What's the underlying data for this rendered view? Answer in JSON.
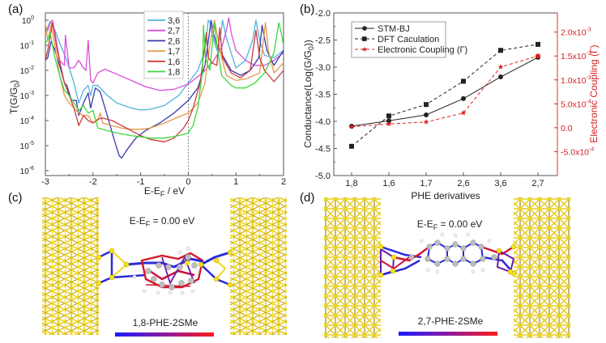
{
  "panels": {
    "a": "(a)",
    "b": "(b)",
    "c": "(c)",
    "d": "(d)"
  },
  "chart_data": [
    {
      "id": "a",
      "type": "line",
      "title": "",
      "xlabel": "E-E",
      "xlabel_sub": "F",
      "xlabel_suffix": " / eV",
      "ylabel": "T(G/G",
      "ylabel_sub": "0",
      "ylabel_suffix": ")",
      "yscale": "log",
      "xlim": [
        -3,
        2
      ],
      "ylim_exp": [
        -6.3,
        0.2
      ],
      "x_ticks": [
        -3,
        -2,
        -1,
        0,
        1,
        2
      ],
      "x_tick_labels": [
        "-3",
        "-2",
        "-1",
        "0",
        "1",
        "2"
      ],
      "y_ticks_exp": [
        0,
        -1,
        -2,
        -3,
        -4,
        -5,
        -6
      ],
      "y_tick_labels": [
        "10",
        "10",
        "10",
        "10",
        "10",
        "10",
        "10"
      ],
      "y_tick_sups": [
        "0",
        "-1",
        "-2",
        "-3",
        "-4",
        "-5",
        "-6"
      ],
      "fermi_line_x": 0,
      "legend_position": "top-center",
      "series": [
        {
          "name": "3,6",
          "color": "#4fb3dc",
          "x": [
            -3.0,
            -2.9,
            -2.8,
            -2.7,
            -2.55,
            -2.4,
            -2.3,
            -2.2,
            -2.1,
            -2.05,
            -2.0,
            -1.9,
            -1.7,
            -1.5,
            -1.2,
            -1.0,
            -0.8,
            -0.5,
            -0.2,
            0.0,
            0.2,
            0.35,
            0.42,
            0.46,
            0.5,
            0.6,
            0.68,
            0.72,
            0.8,
            1.0,
            1.2,
            1.35,
            1.42,
            1.5,
            1.6,
            1.8,
            2.0
          ],
          "logy": [
            -0.5,
            -0.05,
            -0.4,
            -0.9,
            -1.6,
            -2.5,
            -3.3,
            -2.8,
            -2.6,
            -3.0,
            -2.6,
            -2.6,
            -3.0,
            -3.3,
            -3.5,
            -3.58,
            -3.55,
            -3.4,
            -3.0,
            -2.5,
            -2.0,
            -1.2,
            0.0,
            -0.1,
            -0.6,
            -1.2,
            -0.6,
            0.0,
            -0.7,
            -1.9,
            -1.6,
            -0.8,
            0.0,
            -0.8,
            -1.4,
            -1.5,
            -1.2
          ]
        },
        {
          "name": "2,7",
          "color": "#d94fd9",
          "x": [
            -3.0,
            -2.95,
            -2.9,
            -2.85,
            -2.8,
            -2.7,
            -2.6,
            -2.58,
            -2.5,
            -2.4,
            -2.3,
            -2.2,
            -2.15,
            -2.1,
            -2.05,
            -2.0,
            -1.9,
            -1.75,
            -1.5,
            -1.2,
            -0.9,
            -0.6,
            -0.3,
            0.0,
            0.3,
            0.5,
            0.7,
            0.8,
            0.85,
            0.9,
            1.0,
            1.2,
            1.4,
            1.6,
            1.8,
            2.0
          ],
          "logy": [
            -0.5,
            -0.4,
            -0.1,
            0.0,
            -0.5,
            -1.6,
            -1.8,
            -0.6,
            -1.9,
            -1.9,
            -1.6,
            -1.9,
            -2.0,
            -0.8,
            -2.4,
            -2.5,
            -2.1,
            -1.95,
            -2.15,
            -2.4,
            -2.65,
            -2.8,
            -2.75,
            -2.55,
            -2.1,
            -1.7,
            -1.1,
            -0.4,
            0.1,
            -0.5,
            -1.2,
            -1.6,
            -1.8,
            -1.8,
            -1.6,
            -1.3
          ]
        },
        {
          "name": "2,6",
          "color": "#3a3ab0",
          "x": [
            -3.0,
            -2.95,
            -2.88,
            -2.8,
            -2.7,
            -2.6,
            -2.55,
            -2.45,
            -2.35,
            -2.3,
            -2.2,
            -2.1,
            -2.05,
            -1.95,
            -1.85,
            -1.7,
            -1.55,
            -1.45,
            -1.4,
            -1.3,
            -1.1,
            -0.9,
            -0.6,
            -0.3,
            0.0,
            0.2,
            0.35,
            0.48,
            0.52,
            0.6,
            0.75,
            0.9,
            1.1,
            1.3,
            1.48,
            1.55,
            1.65,
            1.8,
            2.0
          ],
          "logy": [
            -1.6,
            -1.5,
            -0.85,
            -1.2,
            -1.8,
            -2.5,
            -2.6,
            -3.2,
            -3.2,
            -3.8,
            -3.3,
            -2.9,
            -3.5,
            -2.7,
            -2.85,
            -3.8,
            -4.8,
            -5.4,
            -5.5,
            -5.2,
            -4.7,
            -4.4,
            -4.1,
            -3.7,
            -3.2,
            -2.7,
            -1.8,
            0.0,
            -0.5,
            -1.0,
            -1.5,
            -2.0,
            -2.2,
            -2.0,
            -1.5,
            -0.2,
            -1.2,
            -1.8,
            -1.2
          ]
        },
        {
          "name": "1,7",
          "color": "#e39a4a",
          "x": [
            -3.0,
            -2.95,
            -2.88,
            -2.8,
            -2.7,
            -2.6,
            -2.5,
            -2.4,
            -2.3,
            -2.2,
            -2.1,
            -2.0,
            -1.9,
            -1.85,
            -1.8,
            -1.6,
            -1.4,
            -1.2,
            -1.0,
            -0.8,
            -0.5,
            -0.2,
            0.0,
            0.2,
            0.35,
            0.45,
            0.55,
            0.6,
            0.7,
            0.8,
            1.0,
            1.2,
            1.5,
            1.62,
            1.68,
            1.8,
            2.0
          ],
          "logy": [
            -0.1,
            -0.8,
            -0.2,
            -1.0,
            -2.2,
            -3.0,
            -3.3,
            -3.5,
            -3.7,
            -3.8,
            -3.8,
            -4.1,
            -4.0,
            -3.7,
            -4.1,
            -4.2,
            -4.3,
            -4.35,
            -4.35,
            -4.3,
            -4.1,
            -3.85,
            -3.7,
            -3.3,
            -2.5,
            -1.0,
            0.0,
            -0.5,
            -1.5,
            -2.2,
            -2.4,
            -2.35,
            -2.1,
            -0.1,
            -1.2,
            -2.1,
            -1.7
          ]
        },
        {
          "name": "1,6",
          "color": "#cc3b3b",
          "x": [
            -3.0,
            -2.95,
            -2.85,
            -2.75,
            -2.6,
            -2.5,
            -2.4,
            -2.3,
            -2.2,
            -2.1,
            -2.0,
            -1.9,
            -1.8,
            -1.6,
            -1.4,
            -1.2,
            -1.0,
            -0.8,
            -0.5,
            -0.3,
            -0.1,
            0.0,
            0.1,
            0.25,
            0.38,
            0.42,
            0.5,
            0.6,
            0.66,
            0.72,
            0.9,
            1.1,
            1.3,
            1.42,
            1.5,
            1.6,
            1.8,
            2.0
          ],
          "logy": [
            -1.6,
            -1.2,
            -0.1,
            -1.2,
            -2.5,
            -3.0,
            -3.5,
            -4.2,
            -3.8,
            -4.0,
            -4.1,
            -3.95,
            -3.9,
            -4.0,
            -4.2,
            -4.4,
            -4.6,
            -4.75,
            -4.85,
            -4.7,
            -4.3,
            -4.0,
            -3.5,
            -2.5,
            -0.5,
            -1.5,
            -1.7,
            -1.8,
            -0.3,
            -1.5,
            -2.1,
            -2.3,
            -2.0,
            -0.4,
            -1.5,
            -2.0,
            -2.45,
            -2.0
          ]
        },
        {
          "name": "1,8",
          "color": "#3cd83c",
          "x": [
            -3.0,
            -2.95,
            -2.9,
            -2.8,
            -2.7,
            -2.6,
            -2.5,
            -2.4,
            -2.3,
            -2.2,
            -2.1,
            -2.0,
            -1.9,
            -1.7,
            -1.5,
            -1.2,
            -1.0,
            -0.8,
            -0.5,
            -0.2,
            0.0,
            0.1,
            0.2,
            0.3,
            0.32,
            0.36,
            0.45,
            0.55,
            0.6,
            0.7,
            0.9,
            1.0,
            1.2,
            1.4,
            1.6,
            1.8,
            1.9,
            1.95,
            2.0
          ],
          "logy": [
            -0.9,
            -0.8,
            -0.5,
            -1.5,
            -2.2,
            -2.8,
            -3.0,
            -3.3,
            -3.6,
            -3.4,
            -3.7,
            -3.6,
            -4.3,
            -4.4,
            -4.5,
            -4.6,
            -4.65,
            -4.7,
            -4.7,
            -4.6,
            -4.5,
            -4.2,
            -3.5,
            -2.0,
            -0.2,
            -1.5,
            -2.0,
            -0.1,
            -1.0,
            -2.2,
            -2.6,
            -2.7,
            -2.7,
            -2.5,
            -2.1,
            -1.3,
            -0.1,
            -0.5,
            -1.0
          ]
        }
      ]
    },
    {
      "id": "b",
      "type": "line",
      "title": "",
      "xlabel": "PHE derivatives",
      "ylabel": "Conductance(Log(G/G",
      "ylabel_sub": "0",
      "ylabel_suffix": "))",
      "y2label": "Electronic Coupling (Γ)",
      "categories": [
        "1,8",
        "1,6",
        "1,7",
        "2,6",
        "3,6",
        "2,7"
      ],
      "ylim": [
        -5.0,
        -2.0
      ],
      "y_ticks": [
        -2.0,
        -2.5,
        -3.0,
        -3.5,
        -4.0,
        -4.5,
        -5.0
      ],
      "y_tick_labels": [
        "-2.0",
        "-2.5",
        "-3.0",
        "-3.5",
        "-4.0",
        "-4.5",
        "-5.0"
      ],
      "y2lim": [
        -0.001,
        0.0024
      ],
      "y2_ticks": [
        0.002,
        0.0015,
        0.001,
        0.0005,
        0.0,
        -0.0005
      ],
      "y2_tick_labels": [
        "2.0x10",
        "1.5x10",
        "1.0x10",
        "5.0x10",
        "0.0",
        "-5.0x10"
      ],
      "y2_tick_sups": [
        "-3",
        "-3",
        "-3",
        "-4",
        "",
        "-4"
      ],
      "legend_position": "top-left",
      "series": [
        {
          "name": "STM-BJ",
          "axis": "left",
          "color": "#222222",
          "line": "solid",
          "marker": "circle",
          "values": [
            -4.09,
            -3.99,
            -3.88,
            -3.58,
            -3.18,
            -2.82
          ]
        },
        {
          "name": "DFT Caculation",
          "axis": "left",
          "color": "#222222",
          "line": "dashed",
          "marker": "square",
          "values": [
            -4.46,
            -3.9,
            -3.69,
            -3.26,
            -2.69,
            -2.58
          ]
        },
        {
          "name": "Electronic Coupling (Γ)",
          "axis": "right",
          "color": "#e02020",
          "line": "dashed",
          "marker": "star",
          "values": [
            2e-05,
            8e-05,
            0.00012,
            0.00031,
            0.00127,
            0.0015
          ]
        }
      ]
    }
  ],
  "structures": [
    {
      "id": "c",
      "energy_label": "E-E",
      "energy_sub": "F",
      "energy_suffix": " = 0.00 eV",
      "molecule": "1,8-PHE-2SMe",
      "colorbar": [
        "#1a1aff",
        "#ff1a1a"
      ]
    },
    {
      "id": "d",
      "energy_label": "E-E",
      "energy_sub": "F",
      "energy_suffix": " = 0.00 eV",
      "molecule": "2,7-PHE-2SMe",
      "colorbar": [
        "#1a1aff",
        "#ff1a1a"
      ]
    }
  ]
}
